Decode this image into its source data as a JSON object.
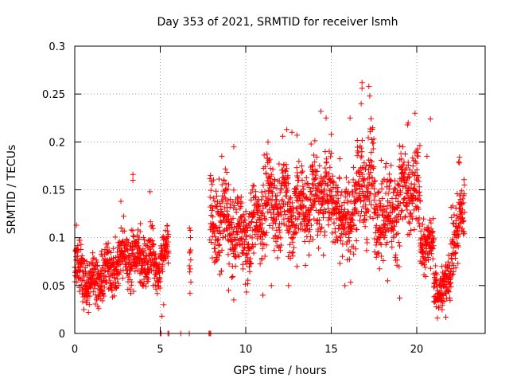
{
  "chart_data": {
    "type": "scatter",
    "title": "Day 353 of 2021, SRMTID for receiver lsmh",
    "xlabel": "GPS time / hours",
    "ylabel": "SRMTID / TECUs",
    "xlim": [
      0,
      24
    ],
    "ylim": [
      0,
      0.3
    ],
    "x_ticks": [
      0,
      5,
      10,
      15,
      20
    ],
    "x_tick_labels": [
      "0",
      "5",
      "10",
      "15",
      "20"
    ],
    "y_ticks": [
      0,
      0.05,
      0.1,
      0.15,
      0.2,
      0.25,
      0.3
    ],
    "y_tick_labels": [
      "0",
      "0.05",
      "0.1",
      "0.15",
      "0.2",
      "0.25",
      "0.3"
    ],
    "grid": true,
    "marker": "plus",
    "color": "#ff0000",
    "segments": [
      {
        "x": [
          0.0,
          0.5
        ],
        "y": [
          0.07,
          0.065
        ],
        "spread": 0.018
      },
      {
        "x": [
          0.5,
          1.5
        ],
        "y": [
          0.058,
          0.055
        ],
        "spread": 0.016
      },
      {
        "x": [
          1.5,
          2.5
        ],
        "y": [
          0.06,
          0.072
        ],
        "spread": 0.018
      },
      {
        "x": [
          2.5,
          3.5
        ],
        "y": [
          0.075,
          0.085
        ],
        "spread": 0.02
      },
      {
        "x": [
          3.5,
          4.7
        ],
        "y": [
          0.08,
          0.075
        ],
        "spread": 0.02
      },
      {
        "x": [
          4.7,
          5.0
        ],
        "y": [
          0.07,
          0.06
        ],
        "spread": 0.015
      },
      {
        "x": [
          5.0,
          5.5
        ],
        "y": [
          0.085,
          0.09
        ],
        "spread": 0.012
      },
      {
        "x": [
          6.7,
          6.8
        ],
        "y": [
          0.085,
          0.09
        ],
        "spread": 0.02
      },
      {
        "x": [
          7.9,
          9.0
        ],
        "y": [
          0.11,
          0.12
        ],
        "spread": 0.03
      },
      {
        "x": [
          9.0,
          10.0
        ],
        "y": [
          0.11,
          0.1
        ],
        "spread": 0.025
      },
      {
        "x": [
          10.0,
          11.0
        ],
        "y": [
          0.095,
          0.13
        ],
        "spread": 0.028
      },
      {
        "x": [
          11.0,
          12.5
        ],
        "y": [
          0.135,
          0.14
        ],
        "spread": 0.03
      },
      {
        "x": [
          12.5,
          14.0
        ],
        "y": [
          0.125,
          0.14
        ],
        "spread": 0.03
      },
      {
        "x": [
          14.0,
          15.5
        ],
        "y": [
          0.145,
          0.14
        ],
        "spread": 0.03
      },
      {
        "x": [
          15.5,
          16.5
        ],
        "y": [
          0.11,
          0.135
        ],
        "spread": 0.03
      },
      {
        "x": [
          16.5,
          17.5
        ],
        "y": [
          0.15,
          0.16
        ],
        "spread": 0.035
      },
      {
        "x": [
          17.5,
          18.5
        ],
        "y": [
          0.13,
          0.125
        ],
        "spread": 0.03
      },
      {
        "x": [
          18.5,
          19.5
        ],
        "y": [
          0.13,
          0.15
        ],
        "spread": 0.035
      },
      {
        "x": [
          19.5,
          20.2
        ],
        "y": [
          0.15,
          0.135
        ],
        "spread": 0.03
      },
      {
        "x": [
          20.2,
          21.0
        ],
        "y": [
          0.1,
          0.085
        ],
        "spread": 0.02
      },
      {
        "x": [
          21.0,
          22.0
        ],
        "y": [
          0.045,
          0.055
        ],
        "spread": 0.015
      },
      {
        "x": [
          22.0,
          22.8
        ],
        "y": [
          0.1,
          0.12
        ],
        "spread": 0.03
      }
    ],
    "outliers": [
      {
        "x": 16.8,
        "y": 0.262
      },
      {
        "x": 16.8,
        "y": 0.256
      },
      {
        "x": 17.2,
        "y": 0.258
      },
      {
        "x": 17.25,
        "y": 0.248
      },
      {
        "x": 16.75,
        "y": 0.24
      },
      {
        "x": 14.7,
        "y": 0.225
      },
      {
        "x": 14.4,
        "y": 0.232
      },
      {
        "x": 16.1,
        "y": 0.225
      },
      {
        "x": 19.9,
        "y": 0.23
      },
      {
        "x": 19.5,
        "y": 0.22
      },
      {
        "x": 20.8,
        "y": 0.224
      },
      {
        "x": 12.4,
        "y": 0.213
      },
      {
        "x": 12.7,
        "y": 0.21
      },
      {
        "x": 13.0,
        "y": 0.207
      },
      {
        "x": 15.0,
        "y": 0.208
      },
      {
        "x": 11.3,
        "y": 0.2
      },
      {
        "x": 9.3,
        "y": 0.195
      },
      {
        "x": 8.6,
        "y": 0.185
      },
      {
        "x": 3.4,
        "y": 0.166
      },
      {
        "x": 3.4,
        "y": 0.16
      },
      {
        "x": 4.4,
        "y": 0.148
      },
      {
        "x": 2.7,
        "y": 0.138
      },
      {
        "x": 22.5,
        "y": 0.184
      },
      {
        "x": 22.5,
        "y": 0.178
      },
      {
        "x": 5.2,
        "y": 0.03
      },
      {
        "x": 5.1,
        "y": 0.018
      },
      {
        "x": 21.7,
        "y": 0.017
      },
      {
        "x": 0.1,
        "y": 0.113
      },
      {
        "x": 0.8,
        "y": 0.022
      },
      {
        "x": 1.4,
        "y": 0.026
      },
      {
        "x": 9.3,
        "y": 0.035
      },
      {
        "x": 9.0,
        "y": 0.045
      },
      {
        "x": 11.0,
        "y": 0.04
      },
      {
        "x": 11.5,
        "y": 0.05
      },
      {
        "x": 12.5,
        "y": 0.05
      },
      {
        "x": 13.0,
        "y": 0.07
      },
      {
        "x": 15.8,
        "y": 0.05
      },
      {
        "x": 19.0,
        "y": 0.037
      },
      {
        "x": 18.3,
        "y": 0.055
      },
      {
        "x": 20.6,
        "y": 0.185
      }
    ],
    "zero_points": [
      {
        "x": 5.0,
        "y": 0
      },
      {
        "x": 5.05,
        "y": 0
      },
      {
        "x": 5.45,
        "y": 0
      },
      {
        "x": 5.5,
        "y": 0
      },
      {
        "x": 6.2,
        "y": 0
      },
      {
        "x": 6.7,
        "y": 0
      },
      {
        "x": 7.85,
        "y": 0
      },
      {
        "x": 7.9,
        "y": 0
      },
      {
        "x": 7.95,
        "y": 0
      }
    ]
  }
}
